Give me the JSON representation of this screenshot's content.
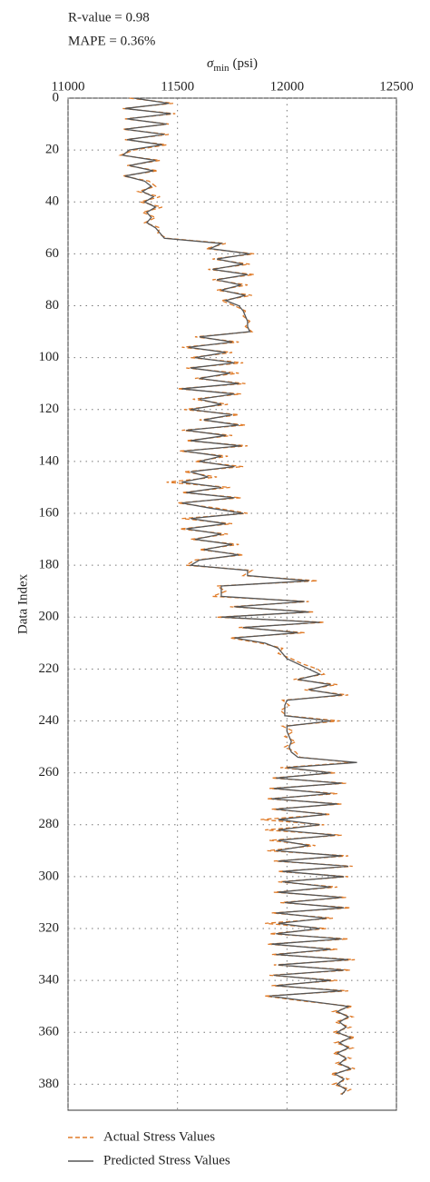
{
  "chart_data": {
    "type": "line",
    "orientation": "horizontal",
    "annotations": [
      "R-value = 0.98",
      "MAPE = 0.36%"
    ],
    "ylabel": {
      "symbol": "σ",
      "subscript": "min",
      "unit": "(psi)"
    },
    "xlabel": "Data Index",
    "ylim": [
      11000,
      12500
    ],
    "yticks": [
      11000,
      11500,
      12000,
      12500
    ],
    "xlim": [
      0,
      390
    ],
    "xticks": [
      0,
      20,
      40,
      60,
      80,
      100,
      120,
      140,
      160,
      180,
      200,
      220,
      240,
      260,
      280,
      300,
      320,
      340,
      360,
      380
    ],
    "x_inverted": true,
    "grid": true,
    "grid_style": "dotted",
    "legend": "bottom-left",
    "x": [
      0,
      2,
      4,
      6,
      8,
      10,
      12,
      14,
      16,
      18,
      20,
      22,
      24,
      26,
      28,
      30,
      32,
      34,
      36,
      38,
      40,
      42,
      44,
      46,
      48,
      50,
      52,
      54,
      56,
      58,
      60,
      62,
      64,
      66,
      68,
      70,
      72,
      74,
      76,
      78,
      80,
      82,
      84,
      86,
      88,
      90,
      92,
      94,
      96,
      98,
      100,
      102,
      104,
      106,
      108,
      110,
      112,
      114,
      116,
      118,
      120,
      122,
      124,
      126,
      128,
      130,
      132,
      134,
      136,
      138,
      140,
      142,
      144,
      146,
      148,
      150,
      152,
      154,
      156,
      158,
      160,
      162,
      164,
      166,
      168,
      170,
      172,
      174,
      176,
      178,
      180,
      182,
      184,
      186,
      188,
      190,
      192,
      194,
      196,
      198,
      200,
      202,
      204,
      206,
      208,
      210,
      212,
      214,
      216,
      218,
      220,
      222,
      224,
      226,
      228,
      230,
      232,
      234,
      236,
      238,
      240,
      242,
      244,
      246,
      248,
      250,
      252,
      254,
      256,
      258,
      260,
      262,
      264,
      266,
      268,
      270,
      272,
      274,
      276,
      278,
      280,
      282,
      284,
      286,
      288,
      290,
      292,
      294,
      296,
      298,
      300,
      302,
      304,
      306,
      308,
      310,
      312,
      314,
      316,
      318,
      320,
      322,
      324,
      326,
      328,
      330,
      332,
      334,
      336,
      338,
      340,
      342,
      344,
      346,
      348,
      350,
      352,
      354,
      356,
      358,
      360,
      362,
      364,
      366,
      368,
      370,
      372,
      374,
      376,
      378,
      380,
      382,
      384
    ],
    "series": [
      {
        "name": "Actual Stress Values",
        "color": "#e07b28",
        "dashed": true,
        "values": [
          11280,
          11480,
          11250,
          11490,
          11260,
          11460,
          11250,
          11460,
          11260,
          11450,
          11300,
          11240,
          11420,
          11270,
          11410,
          11250,
          11370,
          11400,
          11320,
          11420,
          11330,
          11430,
          11340,
          11400,
          11350,
          11420,
          11410,
          11450,
          11720,
          11630,
          11850,
          11660,
          11830,
          11640,
          11850,
          11660,
          11820,
          11680,
          11840,
          11700,
          11760,
          11810,
          11800,
          11830,
          11810,
          11840,
          11580,
          11780,
          11520,
          11750,
          11560,
          11800,
          11540,
          11780,
          11580,
          11810,
          11500,
          11790,
          11570,
          11730,
          11530,
          11780,
          11600,
          11810,
          11520,
          11750,
          11540,
          11820,
          11510,
          11730,
          11580,
          11800,
          11530,
          11680,
          11450,
          11740,
          11520,
          11790,
          11500,
          11680,
          11820,
          11520,
          11750,
          11510,
          11730,
          11560,
          11780,
          11600,
          11800,
          11580,
          11540,
          11840,
          11800,
          12140,
          11680,
          11720,
          11660,
          12100,
          11740,
          12120,
          11680,
          12170,
          11780,
          12080,
          11740,
          11880,
          11980,
          11960,
          12020,
          12070,
          12140,
          12170,
          12030,
          12230,
          12080,
          12280,
          11980,
          12010,
          11970,
          12000,
          12240,
          11980,
          12030,
          11990,
          12040,
          11990,
          12040,
          12060,
          12300,
          11970,
          12220,
          11930,
          12270,
          11920,
          12230,
          11910,
          12250,
          11930,
          12200,
          11880,
          12170,
          11900,
          12250,
          11920,
          12130,
          11910,
          12280,
          11940,
          12300,
          11960,
          12280,
          11960,
          12230,
          11940,
          12270,
          11970,
          12290,
          11930,
          12210,
          11900,
          12180,
          11920,
          12280,
          11910,
          12230,
          11930,
          12310,
          11940,
          12290,
          11920,
          12230,
          11930,
          12280,
          11900,
          12080,
          12300,
          12210,
          12300,
          12220,
          12290,
          12210,
          12310,
          12220,
          12300,
          12210,
          12290,
          12220,
          12310,
          12200,
          12280,
          12210,
          12290,
          12240
        ]
      },
      {
        "name": "Predicted Stress Values",
        "color": "#555555",
        "dashed": false,
        "values": [
          11300,
          11460,
          11260,
          11470,
          11270,
          11450,
          11260,
          11440,
          11270,
          11430,
          11280,
          11250,
          11400,
          11280,
          11390,
          11260,
          11350,
          11380,
          11340,
          11390,
          11350,
          11400,
          11360,
          11380,
          11360,
          11400,
          11420,
          11440,
          11700,
          11650,
          11830,
          11680,
          11800,
          11660,
          11820,
          11680,
          11790,
          11700,
          11810,
          11720,
          11780,
          11800,
          11810,
          11820,
          11820,
          11830,
          11600,
          11750,
          11550,
          11720,
          11580,
          11760,
          11560,
          11740,
          11600,
          11780,
          11520,
          11760,
          11600,
          11700,
          11560,
          11750,
          11620,
          11780,
          11540,
          11720,
          11560,
          11790,
          11530,
          11700,
          11600,
          11760,
          11560,
          11640,
          11520,
          11700,
          11540,
          11760,
          11520,
          11650,
          11800,
          11560,
          11720,
          11540,
          11700,
          11580,
          11750,
          11620,
          11780,
          11600,
          11560,
          11820,
          11820,
          12100,
          11700,
          11700,
          11700,
          12080,
          11760,
          12100,
          11700,
          12150,
          11800,
          12050,
          11760,
          11900,
          11960,
          11980,
          12000,
          12050,
          12100,
          12150,
          12050,
          12200,
          12100,
          12250,
          12000,
          11990,
          11990,
          11990,
          12200,
          12000,
          12000,
          12010,
          12020,
          12010,
          12020,
          12050,
          12320,
          12000,
          12200,
          11950,
          12250,
          11940,
          12200,
          11930,
          12230,
          11950,
          12180,
          11960,
          12150,
          11960,
          12220,
          11960,
          12100,
          11950,
          12250,
          11960,
          12280,
          11980,
          12260,
          11980,
          12200,
          11960,
          12250,
          11990,
          12260,
          11950,
          12180,
          11960,
          12150,
          11950,
          12250,
          11930,
          12200,
          11950,
          12280,
          11960,
          12260,
          11940,
          12200,
          11950,
          12250,
          11920,
          12100,
          12280,
          12230,
          12280,
          12240,
          12270,
          12230,
          12290,
          12240,
          12280,
          12230,
          12270,
          12240,
          12290,
          12220,
          12260,
          12230,
          12270,
          12250
        ]
      }
    ]
  }
}
